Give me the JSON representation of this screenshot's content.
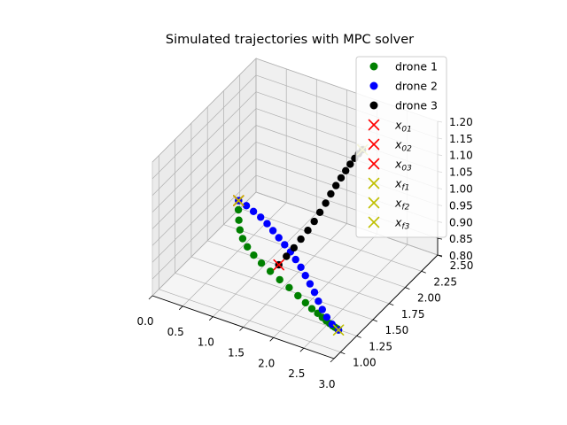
{
  "chart_data": {
    "type": "scatter",
    "projection": "3d",
    "title": "Simulated trajectories with MPC solver",
    "xlabel": "",
    "ylabel": "",
    "zlabel": "",
    "xlim": [
      0.0,
      3.0
    ],
    "ylim": [
      0.9,
      2.5
    ],
    "zlim": [
      0.8,
      1.2
    ],
    "x_ticks": [
      "0.0",
      "0.5",
      "1.0",
      "1.5",
      "2.0",
      "2.5",
      "3.0"
    ],
    "y_ticks": [
      "1.00",
      "1.25",
      "1.50",
      "1.75",
      "2.00",
      "2.25",
      "2.50"
    ],
    "z_ticks": [
      "0.80",
      "0.85",
      "0.90",
      "0.95",
      "1.00",
      "1.05",
      "1.10",
      "1.15",
      "1.20"
    ],
    "grid": true,
    "legend_position": "upper-right",
    "colors": {
      "drone_1": "#008000",
      "drone_2": "#0000ff",
      "drone_3": "#000000",
      "start": "#ff0000",
      "final": "#bfbf00"
    },
    "series": [
      {
        "name": "drone 1",
        "marker": "o",
        "color": "#008000",
        "x": [
          0.3,
          0.33,
          0.38,
          0.45,
          0.55,
          0.68,
          0.84,
          1.02,
          1.22,
          1.44,
          1.66,
          1.88,
          2.08,
          2.26,
          2.42,
          2.56,
          2.68,
          2.78,
          2.86,
          2.92,
          2.97,
          3.0
        ],
        "y": [
          1.95,
          1.92,
          1.88,
          1.83,
          1.78,
          1.73,
          1.68,
          1.63,
          1.58,
          1.52,
          1.46,
          1.39,
          1.32,
          1.25,
          1.19,
          1.13,
          1.08,
          1.04,
          1.01,
          0.99,
          0.98,
          0.97
        ],
        "z": [
          0.9,
          0.88,
          0.86,
          0.845,
          0.835,
          0.828,
          0.823,
          0.82,
          0.818,
          0.818,
          0.82,
          0.823,
          0.828,
          0.835,
          0.843,
          0.851,
          0.858,
          0.864,
          0.868,
          0.871,
          0.872,
          0.872
        ]
      },
      {
        "name": "drone 2",
        "marker": "o",
        "color": "#0000ff",
        "x": [
          0.3,
          0.45,
          0.6,
          0.75,
          0.9,
          1.05,
          1.2,
          1.35,
          1.5,
          1.65,
          1.8,
          1.95,
          2.1,
          2.25,
          2.4,
          2.55,
          2.7,
          2.85,
          3.0
        ],
        "y": [
          1.95,
          1.93,
          1.9,
          1.87,
          1.83,
          1.78,
          1.73,
          1.68,
          1.63,
          1.57,
          1.51,
          1.44,
          1.37,
          1.3,
          1.22,
          1.14,
          1.07,
          1.01,
          0.97
        ],
        "z": [
          0.9,
          0.898,
          0.896,
          0.894,
          0.892,
          0.89,
          0.888,
          0.886,
          0.884,
          0.882,
          0.88,
          0.878,
          0.876,
          0.874,
          0.872,
          0.872,
          0.872,
          0.872,
          0.872
        ]
      },
      {
        "name": "drone 3",
        "marker": "o",
        "color": "#000000",
        "x": [
          1.5,
          1.55,
          1.6,
          1.64,
          1.68,
          1.71,
          1.73,
          1.75,
          1.76,
          1.77,
          1.78,
          1.78,
          1.78,
          1.78,
          1.78,
          1.78
        ],
        "y": [
          1.45,
          1.52,
          1.59,
          1.66,
          1.73,
          1.8,
          1.87,
          1.94,
          2.01,
          2.08,
          2.15,
          2.22,
          2.29,
          2.36,
          2.42,
          2.48
        ],
        "z": [
          0.88,
          0.895,
          0.91,
          0.925,
          0.94,
          0.955,
          0.97,
          0.985,
          1.0,
          1.012,
          1.022,
          1.03,
          1.036,
          1.04,
          1.042,
          1.042
        ]
      },
      {
        "name": "x_{01}",
        "marker": "x",
        "color": "#ff0000",
        "x": [
          0.3
        ],
        "y": [
          1.95
        ],
        "z": [
          0.9
        ]
      },
      {
        "name": "x_{02}",
        "marker": "x",
        "color": "#ff0000",
        "x": [
          0.3
        ],
        "y": [
          1.95
        ],
        "z": [
          0.9
        ]
      },
      {
        "name": "x_{03}",
        "marker": "x",
        "color": "#ff0000",
        "x": [
          1.5
        ],
        "y": [
          1.45
        ],
        "z": [
          0.88
        ]
      },
      {
        "name": "x_{f1}",
        "marker": "x",
        "color": "#bfbf00",
        "x": [
          3.0
        ],
        "y": [
          0.97
        ],
        "z": [
          0.872
        ]
      },
      {
        "name": "x_{f2}",
        "marker": "x",
        "color": "#bfbf00",
        "x": [
          0.3
        ],
        "y": [
          1.95
        ],
        "z": [
          0.9
        ]
      },
      {
        "name": "x_{f3}",
        "marker": "x",
        "color": "#bfbf00",
        "x": [
          1.78
        ],
        "y": [
          2.48
        ],
        "z": [
          1.042
        ]
      }
    ],
    "legend": [
      {
        "label": "drone 1",
        "marker": "o",
        "color": "#008000",
        "base": "drone 1",
        "sub": ""
      },
      {
        "label": "drone 2",
        "marker": "o",
        "color": "#0000ff",
        "base": "drone 2",
        "sub": ""
      },
      {
        "label": "drone 3",
        "marker": "o",
        "color": "#000000",
        "base": "drone 3",
        "sub": ""
      },
      {
        "label": "x_{01}",
        "marker": "x",
        "color": "#ff0000",
        "base": "x",
        "sub": "01"
      },
      {
        "label": "x_{02}",
        "marker": "x",
        "color": "#ff0000",
        "base": "x",
        "sub": "02"
      },
      {
        "label": "x_{03}",
        "marker": "x",
        "color": "#ff0000",
        "base": "x",
        "sub": "03"
      },
      {
        "label": "x_{f1}",
        "marker": "x",
        "color": "#bfbf00",
        "base": "x",
        "sub": "f1"
      },
      {
        "label": "x_{f2}",
        "marker": "x",
        "color": "#bfbf00",
        "base": "x",
        "sub": "f2"
      },
      {
        "label": "x_{f3}",
        "marker": "x",
        "color": "#bfbf00",
        "base": "x",
        "sub": "f3"
      }
    ]
  }
}
